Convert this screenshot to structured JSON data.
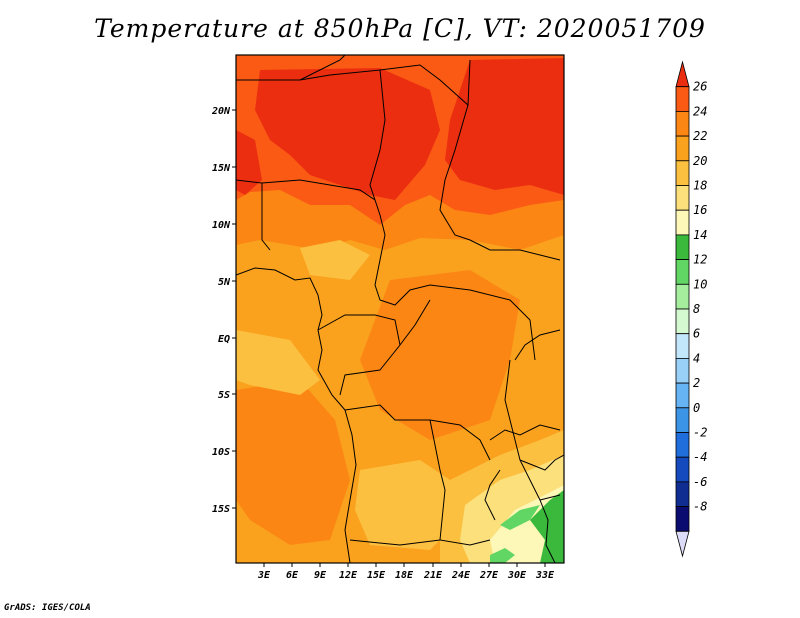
{
  "title": "Temperature at 850hPa [C], VT: 2020051709",
  "credit": "GrADS: IGES/COLA",
  "map": {
    "lat_labels": [
      "20N",
      "15N",
      "10N",
      "5N",
      "EQ",
      "5S",
      "10S",
      "15S"
    ],
    "lon_labels": [
      "3E",
      "6E",
      "9E",
      "12E",
      "15E",
      "18E",
      "21E",
      "24E",
      "27E",
      "30E",
      "33E"
    ]
  },
  "colorbar": {
    "labels": [
      "26",
      "24",
      "22",
      "20",
      "18",
      "16",
      "14",
      "12",
      "10",
      "8",
      "6",
      "4",
      "2",
      "0",
      "-2",
      "-4",
      "-6",
      "-8"
    ],
    "colors": [
      "#eb2e10",
      "#fb5a14",
      "#fb8614",
      "#faa21e",
      "#fcc040",
      "#fce07c",
      "#fef8b8",
      "#3ab93c",
      "#62d664",
      "#a4ee9e",
      "#d4f9d0",
      "#c2e6fa",
      "#98d0f8",
      "#66b4f4",
      "#3c94e6",
      "#1f6edc",
      "#1549be",
      "#102e92",
      "#0b0c70",
      "#dcdcf8"
    ]
  }
}
